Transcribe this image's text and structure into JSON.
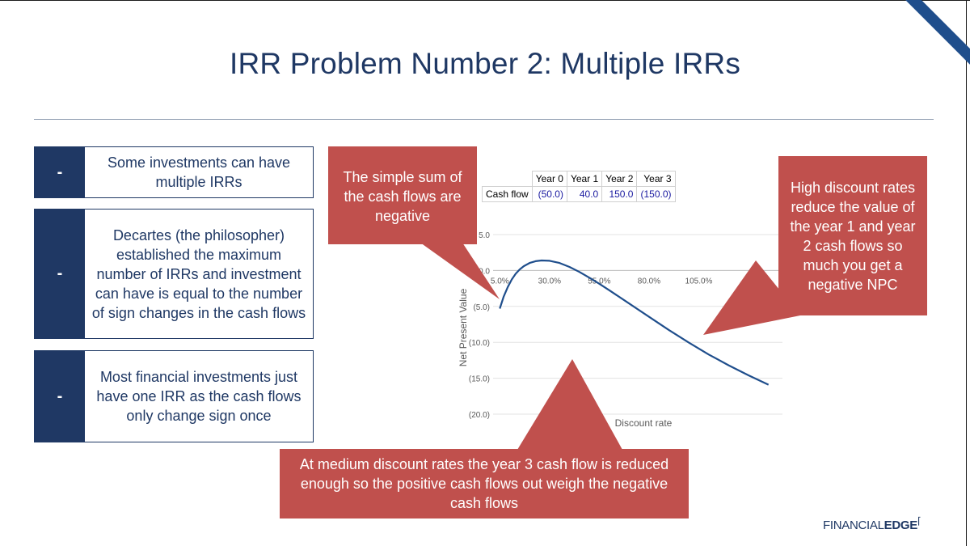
{
  "title": "IRR Problem Number 2: Multiple IRRs",
  "bullets": [
    {
      "dash": "-",
      "text": "Some investments can have multiple IRRs"
    },
    {
      "dash": "-",
      "text": "Decartes (the philosopher) established the maximum number of IRRs and investment can have is equal to the number of sign changes in the cash flows"
    },
    {
      "dash": "-",
      "text": "Most financial investments just have one IRR as the cash flows only change sign once"
    }
  ],
  "callouts": {
    "sum_negative": "The simple sum of the cash flows are negative",
    "high_rates": "High discount rates reduce the value of the year 1 and year 2 cash flows so much you get a negative NPC",
    "medium_rates": "At medium discount rates the year 3 cash flow is reduced enough so the positive cash flows out weigh the negative cash flows"
  },
  "cash_flow_table": {
    "row_label": "Cash flow",
    "headers": [
      "Year 0",
      "Year 1",
      "Year 2",
      "Year 3"
    ],
    "values": [
      "(50.0)",
      "40.0",
      "150.0",
      "(150.0)"
    ]
  },
  "logo": {
    "part1": "FINANCIAL",
    "part2": "EDGE"
  },
  "chart_data": {
    "type": "line",
    "xlabel": "Discount rate",
    "ylabel": "Net Present Value",
    "x_tick_labels": [
      "5.0%",
      "30.0%",
      "55.0%",
      "80.0%",
      "105.0%"
    ],
    "x_ticks": [
      5,
      30,
      55,
      80,
      105
    ],
    "y_tick_labels": [
      "5.0",
      "0.0",
      "(5.0)",
      "(10.0)",
      "(15.0)",
      "(20.0)"
    ],
    "y_ticks": [
      5,
      0,
      -5,
      -10,
      -15,
      -20
    ],
    "xlim": [
      0,
      130
    ],
    "ylim": [
      -20,
      5
    ],
    "grid": true,
    "x_axis_crosses_at": 0,
    "series": [
      {
        "color": "#1f4e8c",
        "x": [
          5,
          7,
          9,
          11,
          13,
          15,
          17,
          20,
          23,
          26,
          30,
          35,
          40,
          45,
          50,
          55,
          60,
          70,
          80,
          90,
          100,
          110,
          120,
          130,
          140,
          150
        ],
        "y": [
          -5.3,
          -3.6,
          -2.3,
          -1.25,
          -0.45,
          0.15,
          0.6,
          1.05,
          1.3,
          1.4,
          1.35,
          1.05,
          0.5,
          -0.2,
          -1.0,
          -1.85,
          -2.75,
          -4.6,
          -6.45,
          -8.3,
          -10.05,
          -11.7,
          -13.2,
          -14.6,
          -15.9,
          -17.1
        ]
      }
    ]
  }
}
